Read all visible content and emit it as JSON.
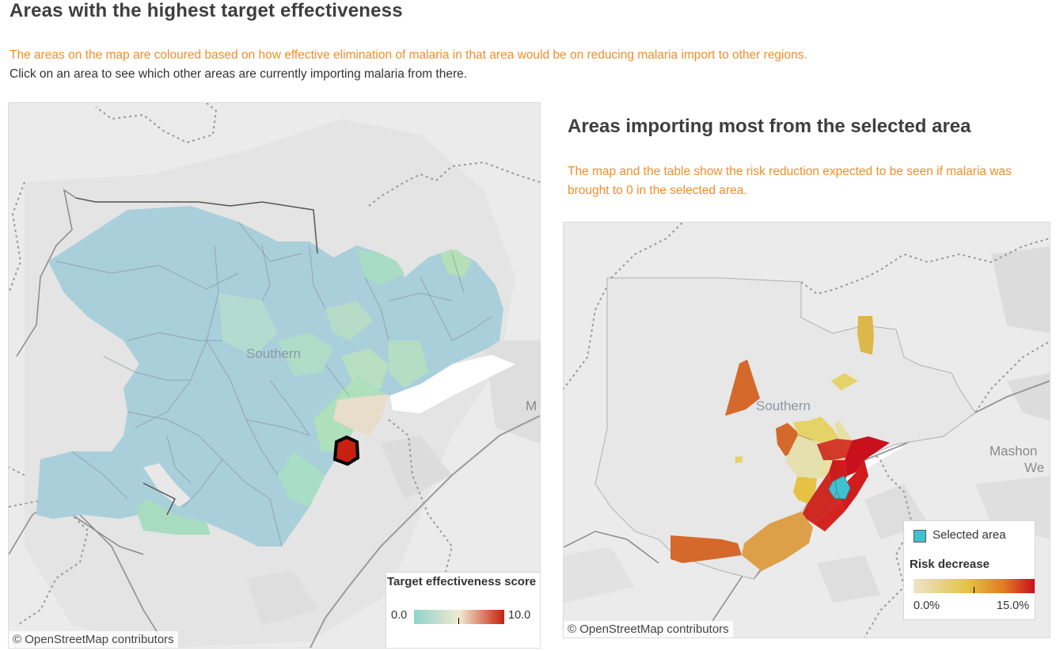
{
  "title": "Areas with the highest target effectiveness",
  "description_orange": "The areas on the map are coloured based on how effective elimination of malaria in that area would be on reducing malaria import to other regions.",
  "description_dark": "Click on an area to see which other areas are currently importing malaria from there.",
  "left_map": {
    "place_label": "Southern",
    "edge_label": "M",
    "attribution": "© OpenStreetMap contributors",
    "legend": {
      "title": "Target effectiveness score",
      "min_label": "0.0",
      "max_label": "10.0",
      "colors": [
        "#8fd3cc",
        "#f1ead0",
        "#c8200e"
      ],
      "selected_area_score": 10.0
    }
  },
  "right_panel": {
    "title": "Areas importing most from the selected area",
    "description": "The map and the table show the risk reduction expected to be seen if malaria was brought to 0 in the selected area."
  },
  "right_map": {
    "place_label": "Southern",
    "edge_label_line1": "Mashon",
    "edge_label_line2": "We",
    "attribution": "© OpenStreetMap contributors",
    "legend": {
      "selected_label": "Selected area",
      "selected_color": "#3fc2cf",
      "title": "Risk decrease",
      "min_label": "0.0%",
      "max_label": "15.0%",
      "colors": [
        "#ece4c8",
        "#e5c244",
        "#e07a25",
        "#c8111c"
      ]
    }
  }
}
